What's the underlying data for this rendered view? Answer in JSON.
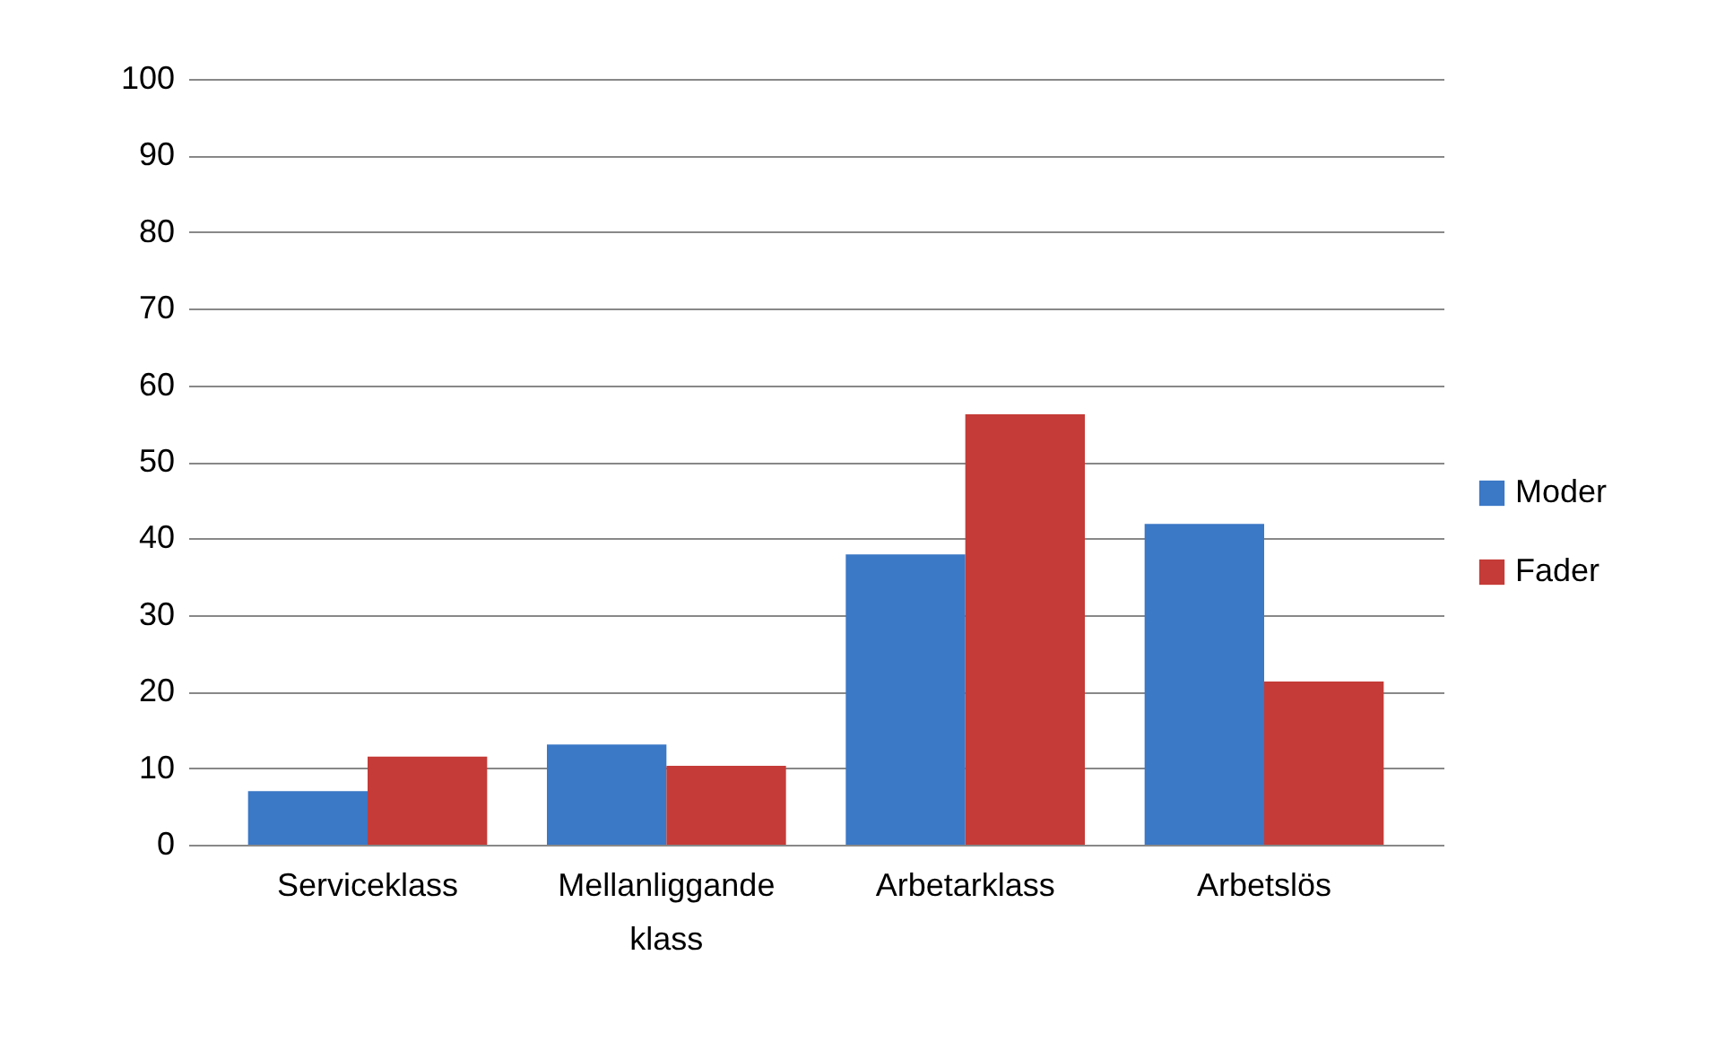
{
  "chart_data": {
    "type": "bar",
    "categories": [
      "Serviceklass",
      "Mellanliggande klass",
      "Arbetarklass",
      "Arbetslös"
    ],
    "series": [
      {
        "name": "Moder",
        "color": "#3b78c6",
        "values": [
          7.0,
          13.1,
          37.9,
          41.9
        ]
      },
      {
        "name": "Fader",
        "color": "#c53b37",
        "values": [
          11.5,
          10.3,
          56.2,
          21.3
        ]
      }
    ],
    "ylim": [
      0,
      100
    ],
    "yticks": [
      0,
      10,
      20,
      30,
      40,
      50,
      60,
      70,
      80,
      90,
      100
    ],
    "grid": "y",
    "legend": "right"
  }
}
